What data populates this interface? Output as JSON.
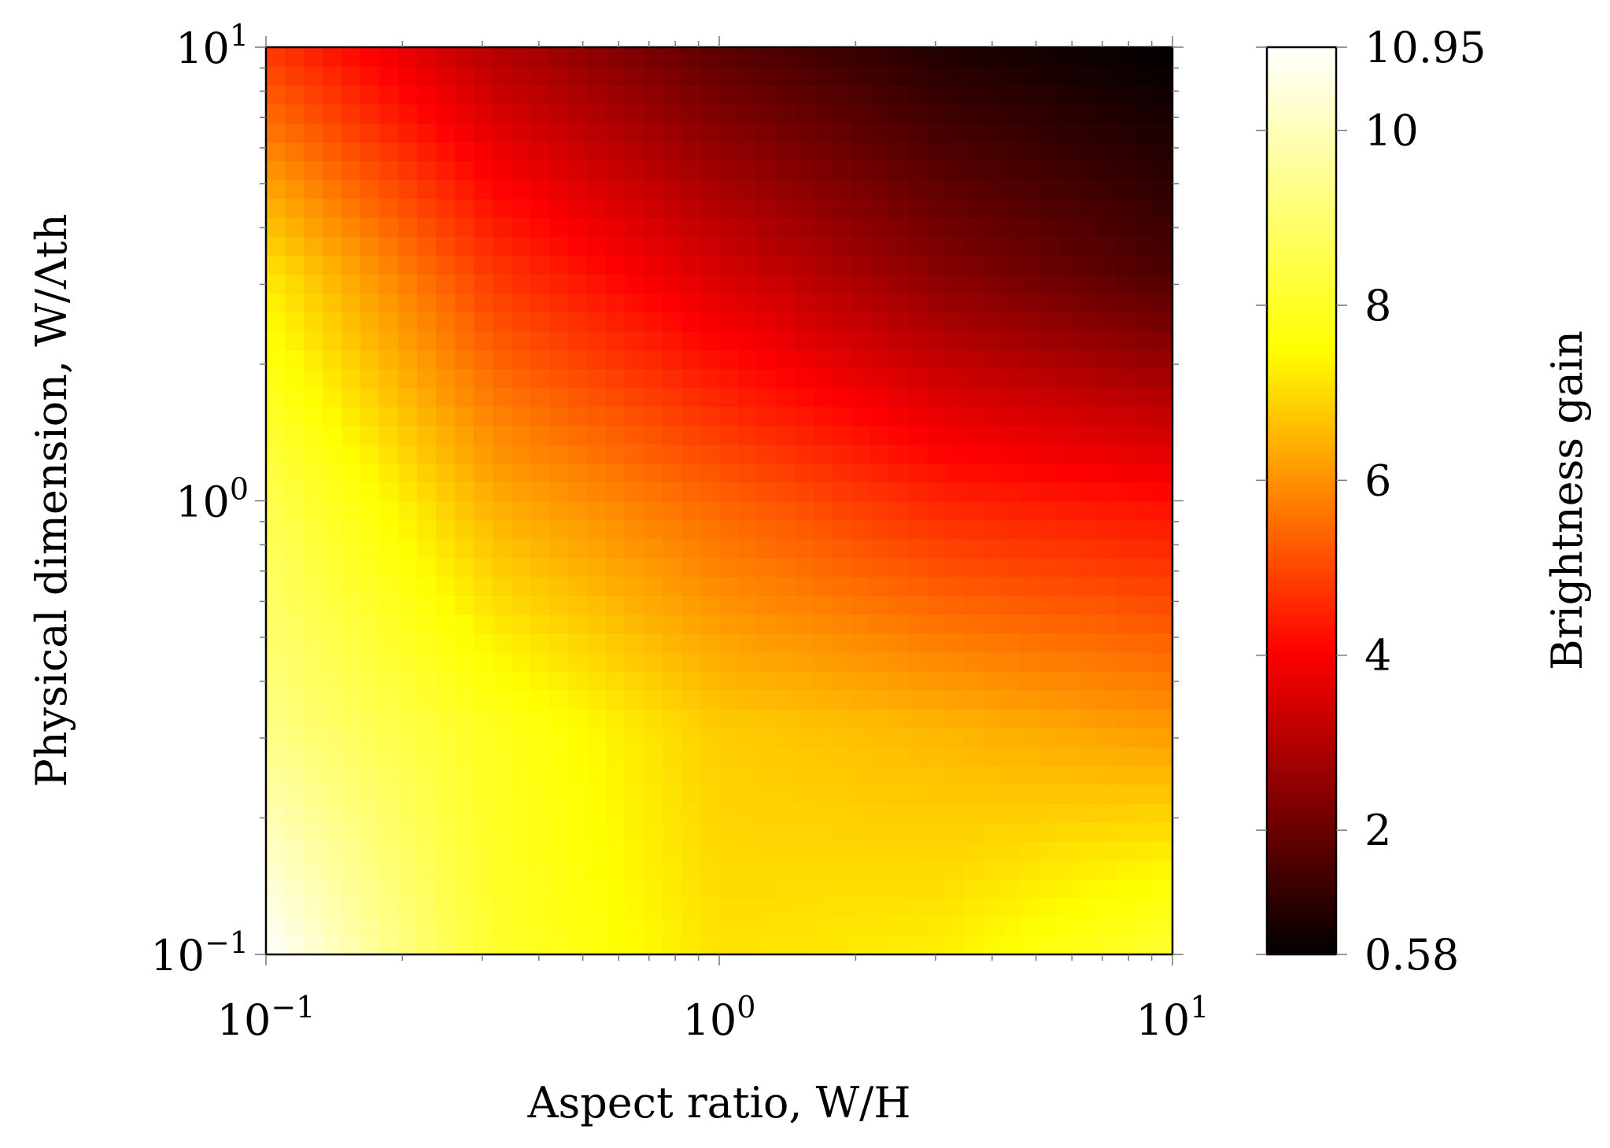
{
  "chart_data": {
    "type": "heatmap",
    "xlabel": "Aspect ratio, W/H",
    "ylabel": "Physical dimension, W/Λth",
    "x_scale": "log",
    "y_scale": "log",
    "xlim": [
      0.1,
      10
    ],
    "ylim": [
      0.1,
      10
    ],
    "x_ticks": [
      {
        "value": 0.1,
        "base": "10",
        "exp": "−1"
      },
      {
        "value": 1,
        "base": "10",
        "exp": "0"
      },
      {
        "value": 10,
        "base": "10",
        "exp": "1"
      }
    ],
    "y_ticks": [
      {
        "value": 0.1,
        "base": "10",
        "exp": "−1"
      },
      {
        "value": 1,
        "base": "10",
        "exp": "0"
      },
      {
        "value": 10,
        "base": "10",
        "exp": "1"
      }
    ],
    "colorbar": {
      "label": "Brightness gain",
      "colormap": "hot",
      "min": 0.58,
      "max": 10.95,
      "tick_values": [
        0.58,
        2,
        4,
        6,
        8,
        10,
        10.95
      ],
      "tick_labels": [
        "0.58",
        "2",
        "4",
        "6",
        "8",
        "10",
        "10.95"
      ],
      "colors": [
        "#000000",
        "#ff0000",
        "#ffff00",
        "#ffffff"
      ]
    },
    "grid": false,
    "x_values_log10": [
      -1.0,
      -0.5,
      0.0,
      0.5,
      1.0
    ],
    "y_values_log10": [
      -1.0,
      -0.5,
      0.0,
      0.5,
      1.0
    ],
    "z_rows_bottom_to_top": [
      [
        10.95,
        8.1,
        7.1,
        7.3,
        8.2
      ],
      [
        9.3,
        7.9,
        6.8,
        6.5,
        6.1
      ],
      [
        8.6,
        6.4,
        5.4,
        4.5,
        4.2
      ],
      [
        7.2,
        4.8,
        3.5,
        2.4,
        1.6
      ],
      [
        4.8,
        3.0,
        1.8,
        1.0,
        0.58
      ]
    ]
  }
}
